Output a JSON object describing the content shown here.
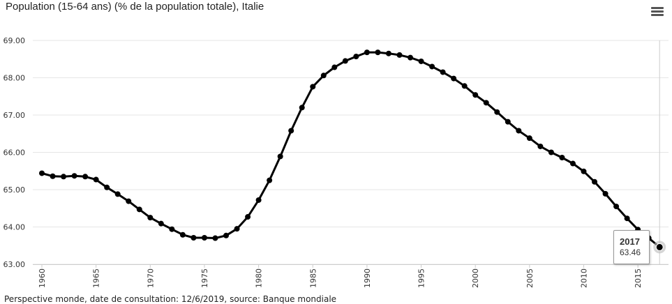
{
  "title": "Population (15-64 ans) (% de la population totale), Italie",
  "footer": "Perspective monde, date de consultation: 12/6/2019, source: Banque mondiale",
  "menu_icon": "hamburger-menu-icon",
  "tooltip": {
    "year": "2017",
    "value": "63.46"
  },
  "colors": {
    "line": "#000000",
    "grid": "#e6e6e6",
    "crosshair": "#cccccc",
    "hover_halo": "#bbbbbb"
  },
  "chart_data": {
    "type": "line",
    "title": "Population (15-64 ans) (% de la population totale), Italie",
    "xlabel": "",
    "ylabel": "",
    "xlim": [
      1960,
      2017
    ],
    "ylim": [
      63.0,
      69.0
    ],
    "grid": true,
    "legend": "none",
    "y_ticks": [
      "63.00",
      "64.00",
      "65.00",
      "66.00",
      "67.00",
      "68.00",
      "69.00"
    ],
    "x_ticks": [
      "1960",
      "1965",
      "1970",
      "1975",
      "1980",
      "1985",
      "1990",
      "1995",
      "2000",
      "2005",
      "2010",
      "2015"
    ],
    "x": [
      1960,
      1961,
      1962,
      1963,
      1964,
      1965,
      1966,
      1967,
      1968,
      1969,
      1970,
      1971,
      1972,
      1973,
      1974,
      1975,
      1976,
      1977,
      1978,
      1979,
      1980,
      1981,
      1982,
      1983,
      1984,
      1985,
      1986,
      1987,
      1988,
      1989,
      1990,
      1991,
      1992,
      1993,
      1994,
      1995,
      1996,
      1997,
      1998,
      1999,
      2000,
      2001,
      2002,
      2003,
      2004,
      2005,
      2006,
      2007,
      2008,
      2009,
      2010,
      2011,
      2012,
      2013,
      2014,
      2015,
      2016,
      2017
    ],
    "series": [
      {
        "values": [
          65.44,
          65.36,
          65.35,
          65.37,
          65.35,
          65.27,
          65.06,
          64.88,
          64.69,
          64.47,
          64.25,
          64.09,
          63.94,
          63.79,
          63.71,
          63.71,
          63.7,
          63.77,
          63.95,
          64.27,
          64.72,
          65.25,
          65.89,
          66.58,
          67.2,
          67.76,
          68.06,
          68.28,
          68.45,
          68.57,
          68.68,
          68.68,
          68.65,
          68.61,
          68.54,
          68.44,
          68.3,
          68.15,
          67.98,
          67.78,
          67.54,
          67.33,
          67.08,
          66.82,
          66.58,
          66.38,
          66.16,
          66.0,
          65.86,
          65.7,
          65.49,
          65.21,
          64.89,
          64.55,
          64.23,
          63.93,
          63.7,
          63.46
        ]
      }
    ]
  }
}
